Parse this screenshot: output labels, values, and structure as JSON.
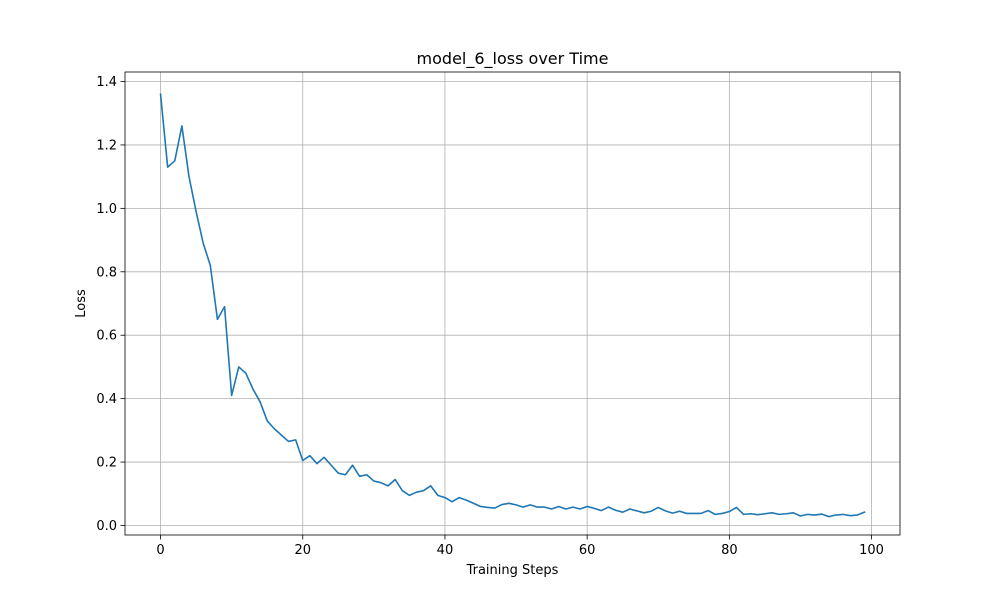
{
  "chart_data": {
    "type": "line",
    "title": "model_6_loss over Time",
    "xlabel": "Training Steps",
    "ylabel": "Loss",
    "xlim": [
      -5,
      104
    ],
    "ylim": [
      -0.03,
      1.43
    ],
    "xticks": [
      0,
      20,
      40,
      60,
      80,
      100
    ],
    "xtick_labels": [
      "0",
      "20",
      "40",
      "60",
      "80",
      "100"
    ],
    "yticks": [
      0.0,
      0.2,
      0.4,
      0.6,
      0.8,
      1.0,
      1.2,
      1.4
    ],
    "ytick_labels": [
      "0.0",
      "0.2",
      "0.4",
      "0.6",
      "0.8",
      "1.0",
      "1.2",
      "1.4"
    ],
    "grid": true,
    "color": "#1f77b4",
    "series": [
      {
        "x": [
          0,
          1,
          2,
          3,
          4,
          5,
          6,
          7,
          8,
          9,
          10,
          11,
          12,
          13,
          14,
          15,
          16,
          17,
          18,
          19,
          20,
          21,
          22,
          23,
          24,
          25,
          26,
          27,
          28,
          29,
          30,
          31,
          32,
          33,
          34,
          35,
          36,
          37,
          38,
          39,
          40,
          41,
          42,
          43,
          44,
          45,
          46,
          47,
          48,
          49,
          50,
          51,
          52,
          53,
          54,
          55,
          56,
          57,
          58,
          59,
          60,
          61,
          62,
          63,
          64,
          65,
          66,
          67,
          68,
          69,
          70,
          71,
          72,
          73,
          74,
          75,
          76,
          77,
          78,
          79,
          80,
          81,
          82,
          83,
          84,
          85,
          86,
          87,
          88,
          89,
          90,
          91,
          92,
          93,
          94,
          95,
          96,
          97,
          98,
          99
        ],
        "values": [
          1.36,
          1.13,
          1.15,
          1.26,
          1.1,
          0.99,
          0.89,
          0.82,
          0.65,
          0.69,
          0.41,
          0.5,
          0.48,
          0.43,
          0.39,
          0.33,
          0.305,
          0.285,
          0.265,
          0.27,
          0.205,
          0.22,
          0.195,
          0.215,
          0.19,
          0.165,
          0.16,
          0.19,
          0.155,
          0.16,
          0.14,
          0.135,
          0.125,
          0.145,
          0.11,
          0.095,
          0.105,
          0.11,
          0.125,
          0.095,
          0.088,
          0.075,
          0.088,
          0.08,
          0.07,
          0.06,
          0.057,
          0.055,
          0.066,
          0.07,
          0.065,
          0.058,
          0.065,
          0.058,
          0.058,
          0.052,
          0.06,
          0.052,
          0.058,
          0.052,
          0.06,
          0.054,
          0.047,
          0.058,
          0.048,
          0.042,
          0.052,
          0.046,
          0.04,
          0.045,
          0.057,
          0.046,
          0.039,
          0.045,
          0.038,
          0.038,
          0.038,
          0.047,
          0.035,
          0.038,
          0.044,
          0.057,
          0.035,
          0.037,
          0.034,
          0.037,
          0.04,
          0.035,
          0.037,
          0.04,
          0.03,
          0.035,
          0.033,
          0.036,
          0.028,
          0.033,
          0.035,
          0.031,
          0.033,
          0.042
        ]
      }
    ]
  }
}
